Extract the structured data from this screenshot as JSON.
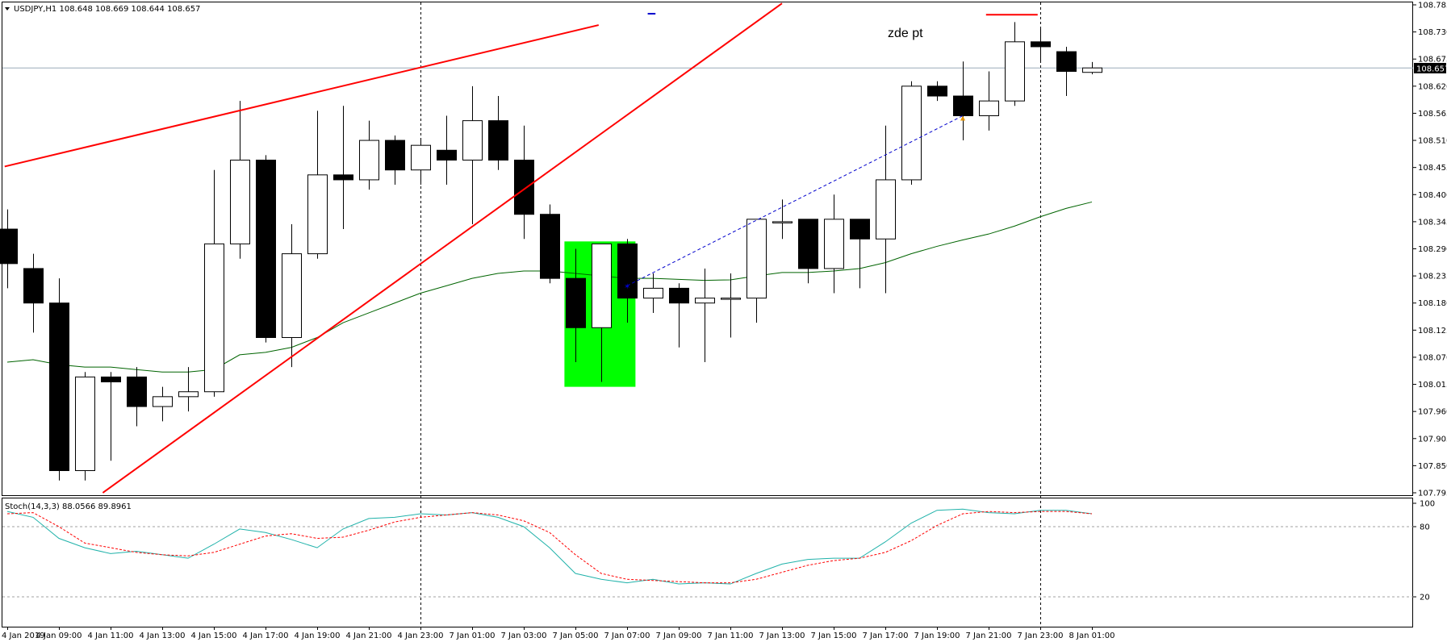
{
  "chart_data": [
    {
      "type": "candlestick",
      "title": "USDJPY,H1 108.648 108.669 108.644 108.657",
      "current_price_label": "108.657",
      "annotation": "zde pt",
      "ylim": [
        107.795,
        108.785
      ],
      "y_ticks": [
        "108.785",
        "108.730",
        "108.675",
        "108.620",
        "108.565",
        "108.510",
        "108.455",
        "108.400",
        "108.345",
        "108.290",
        "108.235",
        "108.180",
        "108.125",
        "108.070",
        "108.015",
        "107.960",
        "107.905",
        "107.850",
        "107.795"
      ],
      "x_ticks": [
        {
          "i": 0,
          "label": "4 Jan 2019"
        },
        {
          "i": 2,
          "label": "4 Jan 09:00"
        },
        {
          "i": 4,
          "label": "4 Jan 11:00"
        },
        {
          "i": 6,
          "label": "4 Jan 13:00"
        },
        {
          "i": 8,
          "label": "4 Jan 15:00"
        },
        {
          "i": 10,
          "label": "4 Jan 17:00"
        },
        {
          "i": 12,
          "label": "4 Jan 19:00"
        },
        {
          "i": 14,
          "label": "4 Jan 21:00"
        },
        {
          "i": 16,
          "label": "4 Jan 23:00"
        },
        {
          "i": 18,
          "label": "7 Jan 01:00"
        },
        {
          "i": 20,
          "label": "7 Jan 03:00"
        },
        {
          "i": 22,
          "label": "7 Jan 05:00"
        },
        {
          "i": 24,
          "label": "7 Jan 07:00"
        },
        {
          "i": 26,
          "label": "7 Jan 09:00"
        },
        {
          "i": 28,
          "label": "7 Jan 11:00"
        },
        {
          "i": 30,
          "label": "7 Jan 13:00"
        },
        {
          "i": 32,
          "label": "7 Jan 15:00"
        },
        {
          "i": 34,
          "label": "7 Jan 17:00"
        },
        {
          "i": 36,
          "label": "7 Jan 19:00"
        },
        {
          "i": 38,
          "label": "7 Jan 21:00"
        },
        {
          "i": 40,
          "label": "7 Jan 23:00"
        },
        {
          "i": 42,
          "label": "8 Jan 01:00"
        }
      ],
      "candles": [
        {
          "o": 108.33,
          "h": 108.37,
          "l": 108.21,
          "c": 108.26
        },
        {
          "o": 108.25,
          "h": 108.28,
          "l": 108.12,
          "c": 108.18
        },
        {
          "o": 108.18,
          "h": 108.23,
          "l": 107.82,
          "c": 107.84
        },
        {
          "o": 107.84,
          "h": 108.04,
          "l": 107.82,
          "c": 108.03
        },
        {
          "o": 108.03,
          "h": 108.04,
          "l": 107.86,
          "c": 108.02
        },
        {
          "o": 108.03,
          "h": 108.05,
          "l": 107.93,
          "c": 107.97
        },
        {
          "o": 107.97,
          "h": 108.01,
          "l": 107.94,
          "c": 107.99
        },
        {
          "o": 107.99,
          "h": 108.05,
          "l": 107.96,
          "c": 108.0
        },
        {
          "o": 108.0,
          "h": 108.45,
          "l": 107.99,
          "c": 108.3
        },
        {
          "o": 108.3,
          "h": 108.59,
          "l": 108.27,
          "c": 108.47
        },
        {
          "o": 108.47,
          "h": 108.48,
          "l": 108.1,
          "c": 108.11
        },
        {
          "o": 108.11,
          "h": 108.34,
          "l": 108.05,
          "c": 108.28
        },
        {
          "o": 108.28,
          "h": 108.57,
          "l": 108.27,
          "c": 108.44
        },
        {
          "o": 108.44,
          "h": 108.58,
          "l": 108.33,
          "c": 108.43
        },
        {
          "o": 108.43,
          "h": 108.55,
          "l": 108.41,
          "c": 108.51
        },
        {
          "o": 108.51,
          "h": 108.52,
          "l": 108.42,
          "c": 108.45
        },
        {
          "o": 108.45,
          "h": 108.51,
          "l": 108.42,
          "c": 108.5
        },
        {
          "o": 108.49,
          "h": 108.56,
          "l": 108.42,
          "c": 108.47
        },
        {
          "o": 108.47,
          "h": 108.62,
          "l": 108.34,
          "c": 108.55
        },
        {
          "o": 108.55,
          "h": 108.6,
          "l": 108.45,
          "c": 108.47
        },
        {
          "o": 108.47,
          "h": 108.54,
          "l": 108.31,
          "c": 108.36
        },
        {
          "o": 108.36,
          "h": 108.38,
          "l": 108.22,
          "c": 108.23
        },
        {
          "o": 108.23,
          "h": 108.29,
          "l": 108.06,
          "c": 108.13
        },
        {
          "o": 108.13,
          "h": 108.3,
          "l": 108.02,
          "c": 108.3
        },
        {
          "o": 108.3,
          "h": 108.31,
          "l": 108.14,
          "c": 108.19
        },
        {
          "o": 108.19,
          "h": 108.24,
          "l": 108.16,
          "c": 108.21
        },
        {
          "o": 108.21,
          "h": 108.22,
          "l": 108.09,
          "c": 108.18
        },
        {
          "o": 108.18,
          "h": 108.25,
          "l": 108.06,
          "c": 108.19
        },
        {
          "o": 108.19,
          "h": 108.24,
          "l": 108.11,
          "c": 108.19
        },
        {
          "o": 108.19,
          "h": 108.35,
          "l": 108.14,
          "c": 108.35
        },
        {
          "o": 108.345,
          "h": 108.39,
          "l": 108.31,
          "c": 108.345
        },
        {
          "o": 108.35,
          "h": 108.35,
          "l": 108.22,
          "c": 108.25
        },
        {
          "o": 108.25,
          "h": 108.4,
          "l": 108.2,
          "c": 108.35
        },
        {
          "o": 108.35,
          "h": 108.35,
          "l": 108.21,
          "c": 108.31
        },
        {
          "o": 108.31,
          "h": 108.54,
          "l": 108.2,
          "c": 108.43
        },
        {
          "o": 108.43,
          "h": 108.63,
          "l": 108.42,
          "c": 108.62
        },
        {
          "o": 108.62,
          "h": 108.63,
          "l": 108.59,
          "c": 108.6
        },
        {
          "o": 108.6,
          "h": 108.67,
          "l": 108.51,
          "c": 108.56
        },
        {
          "o": 108.56,
          "h": 108.65,
          "l": 108.53,
          "c": 108.59
        },
        {
          "o": 108.59,
          "h": 108.75,
          "l": 108.58,
          "c": 108.71
        },
        {
          "o": 108.71,
          "h": 108.74,
          "l": 108.67,
          "c": 108.7
        },
        {
          "o": 108.69,
          "h": 108.7,
          "l": 108.6,
          "c": 108.65
        },
        {
          "o": 108.648,
          "h": 108.669,
          "l": 108.644,
          "c": 108.657
        }
      ],
      "moving_average": {
        "color": "#006400",
        "values": [
          108.06,
          108.065,
          108.055,
          108.05,
          108.05,
          108.045,
          108.04,
          108.04,
          108.045,
          108.075,
          108.08,
          108.09,
          108.11,
          108.14,
          108.16,
          108.18,
          108.2,
          108.215,
          108.23,
          108.24,
          108.245,
          108.245,
          108.24,
          108.235,
          108.23,
          108.23,
          108.228,
          108.226,
          108.227,
          108.235,
          108.242,
          108.242,
          108.245,
          108.25,
          108.262,
          108.28,
          108.295,
          108.308,
          108.32,
          108.336,
          108.355,
          108.372,
          108.385
        ]
      },
      "trend_lines": [
        {
          "color": "#ff0000",
          "from": {
            "i": -0.1,
            "y": 108.457
          },
          "to": {
            "i": 22.9,
            "y": 108.744
          }
        },
        {
          "color": "#ff0000",
          "from": {
            "i": 3.7,
            "y": 107.795
          },
          "to": {
            "i": 30.0,
            "y": 108.788
          }
        },
        {
          "color": "#0000cd",
          "style": "dashed",
          "from": {
            "i": 24.0,
            "y": 108.215
          },
          "to": {
            "i": 37.0,
            "y": 108.56
          }
        },
        {
          "color": "#ff0000",
          "from": {
            "i": 37.9,
            "y": 108.765
          },
          "to": {
            "i": 39.9,
            "y": 108.765
          }
        },
        {
          "color": "#0000cd",
          "from": {
            "i": 24.8,
            "y": 108.767
          },
          "to": {
            "i": 25.1,
            "y": 108.767
          }
        }
      ],
      "price_line": {
        "y": 108.657,
        "color": "#9aaab8"
      },
      "highlight": {
        "from_i": 21.95,
        "to_i": 23.95,
        "y_top": 108.305,
        "y_bottom": 108.01,
        "color": "#00ff00"
      },
      "vlines": [
        16,
        40
      ],
      "candle_colors": {
        "up_fill": "#ffffff",
        "down_fill": "#000000",
        "outline": "#000000"
      }
    },
    {
      "type": "line",
      "title": "Stoch(14,3,3) 88.0566 89.8961",
      "ylim": [
        0,
        100
      ],
      "y_ticks": [
        "100",
        "80",
        "20"
      ],
      "levels": [
        80,
        20
      ],
      "series": [
        {
          "color": "#20b2aa",
          "style": "solid",
          "values": [
            93,
            88,
            70,
            62,
            57,
            59,
            56,
            53,
            65,
            78,
            75,
            69,
            62,
            78,
            87,
            88,
            91,
            90,
            92,
            88,
            80,
            62,
            40,
            35,
            32,
            35,
            31,
            32,
            31,
            40,
            48,
            52,
            53,
            53,
            67,
            83,
            94,
            95,
            92,
            91,
            94,
            94,
            91
          ]
        },
        {
          "color": "#ff0000",
          "style": "dashed",
          "values": [
            91,
            92,
            80,
            66,
            62,
            58,
            56,
            55,
            58,
            65,
            72,
            74,
            70,
            71,
            77,
            84,
            88,
            90,
            92,
            90,
            85,
            75,
            56,
            40,
            35,
            34,
            33,
            32,
            32,
            35,
            41,
            47,
            51,
            53,
            58,
            68,
            81,
            91,
            93,
            92,
            93,
            93,
            91
          ]
        }
      ]
    }
  ]
}
